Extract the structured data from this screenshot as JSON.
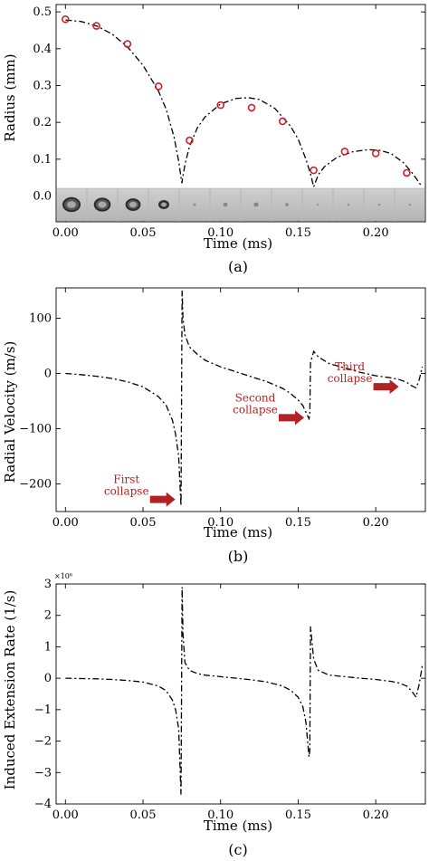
{
  "colors": {
    "marker": "#d0202a",
    "annotation": "#b22222",
    "curve": "#000000"
  },
  "chart_data": [
    {
      "type": "line",
      "panel_label": "(a)",
      "xlabel": "Time (ms)",
      "ylabel": "Radius (mm)",
      "xlim": [
        -0.006,
        0.232
      ],
      "ylim": [
        -0.07,
        0.52
      ],
      "xticks": [
        0.0,
        0.05,
        0.1,
        0.15,
        0.2
      ],
      "xtick_labels": [
        "0.00",
        "0.05",
        "0.10",
        "0.15",
        "0.20"
      ],
      "yticks": [
        0.0,
        0.1,
        0.2,
        0.3,
        0.4,
        0.5
      ],
      "ytick_labels": [
        "0.0",
        "0.1",
        "0.2",
        "0.3",
        "0.4",
        "0.5"
      ],
      "curve": {
        "x": [
          0.0,
          0.01,
          0.02,
          0.03,
          0.04,
          0.05,
          0.06,
          0.065,
          0.07,
          0.073,
          0.075,
          0.077,
          0.08,
          0.085,
          0.09,
          0.1,
          0.11,
          0.118,
          0.125,
          0.135,
          0.145,
          0.15,
          0.155,
          0.158,
          0.16,
          0.163,
          0.167,
          0.175,
          0.185,
          0.195,
          0.203,
          0.21,
          0.218,
          0.224,
          0.229
        ],
        "y": [
          0.478,
          0.474,
          0.462,
          0.44,
          0.405,
          0.355,
          0.285,
          0.235,
          0.16,
          0.095,
          0.035,
          0.085,
          0.135,
          0.185,
          0.215,
          0.25,
          0.265,
          0.267,
          0.262,
          0.238,
          0.19,
          0.155,
          0.1,
          0.06,
          0.025,
          0.058,
          0.08,
          0.105,
          0.12,
          0.126,
          0.124,
          0.115,
          0.09,
          0.06,
          0.03
        ]
      },
      "markers": {
        "x": [
          0.0,
          0.02,
          0.04,
          0.06,
          0.08,
          0.1,
          0.12,
          0.14,
          0.16,
          0.18,
          0.2,
          0.22
        ],
        "y": [
          0.48,
          0.462,
          0.413,
          0.298,
          0.151,
          0.247,
          0.24,
          0.203,
          0.07,
          0.121,
          0.116,
          0.063
        ]
      },
      "frame_strip": {
        "bubble_sizes": [
          1.0,
          0.92,
          0.82,
          0.55,
          0.18,
          0.28,
          0.3,
          0.22,
          0.1,
          0.15,
          0.15,
          0.12
        ]
      }
    },
    {
      "type": "line",
      "panel_label": "(b)",
      "xlabel": "Time (ms)",
      "ylabel": "Radial Velocity (m/s)",
      "xlim": [
        -0.006,
        0.232
      ],
      "ylim": [
        -250,
        155
      ],
      "xticks": [
        0.0,
        0.05,
        0.1,
        0.15,
        0.2
      ],
      "xtick_labels": [
        "0.00",
        "0.05",
        "0.10",
        "0.15",
        "0.20"
      ],
      "yticks": [
        -200,
        -100,
        0,
        100
      ],
      "ytick_labels": [
        "−200",
        "−100",
        "0",
        "100"
      ],
      "curve": {
        "x": [
          0.0,
          0.01,
          0.02,
          0.03,
          0.04,
          0.05,
          0.06,
          0.065,
          0.069,
          0.071,
          0.073,
          0.0745,
          0.0752,
          0.0758,
          0.077,
          0.08,
          0.085,
          0.09,
          0.1,
          0.11,
          0.12,
          0.13,
          0.14,
          0.145,
          0.15,
          0.153,
          0.155,
          0.157,
          0.1575,
          0.158,
          0.16,
          0.163,
          0.17,
          0.18,
          0.19,
          0.2,
          0.21,
          0.215,
          0.22,
          0.223,
          0.226,
          0.228,
          0.23
        ],
        "y": [
          0,
          -2,
          -5,
          -9,
          -15,
          -24,
          -42,
          -58,
          -85,
          -110,
          -150,
          -240,
          150,
          100,
          70,
          48,
          35,
          24,
          12,
          3,
          -6,
          -15,
          -27,
          -36,
          -48,
          -58,
          -70,
          -82,
          -75,
          20,
          40,
          30,
          18,
          10,
          2,
          -4,
          -8,
          -11,
          -16,
          -22,
          -26,
          -12,
          12
        ]
      },
      "annotations": [
        {
          "lines": [
            "First",
            "collapse"
          ],
          "x": 0.072,
          "y": -228
        },
        {
          "lines": [
            "Second",
            "collapse"
          ],
          "x": 0.155,
          "y": -80
        },
        {
          "lines": [
            "Third",
            "collapse"
          ],
          "x": 0.216,
          "y": -24
        }
      ]
    },
    {
      "type": "line",
      "panel_label": "(c)",
      "xlabel": "Time (ms)",
      "ylabel": "Induced Extension Rate (1/s)",
      "multiplier": "×10⁶",
      "xlim": [
        -0.006,
        0.232
      ],
      "ylim": [
        -4,
        3
      ],
      "xticks": [
        0.0,
        0.05,
        0.1,
        0.15,
        0.2
      ],
      "xtick_labels": [
        "0.00",
        "0.05",
        "0.10",
        "0.15",
        "0.20"
      ],
      "yticks": [
        -4,
        -3,
        -2,
        -1,
        0,
        1,
        2,
        3
      ],
      "ytick_labels": [
        "−4",
        "−3",
        "−2",
        "−1",
        "0",
        "1",
        "2",
        "3"
      ],
      "curve": {
        "x": [
          0.0,
          0.01,
          0.02,
          0.03,
          0.04,
          0.05,
          0.06,
          0.065,
          0.069,
          0.071,
          0.073,
          0.0745,
          0.0752,
          0.0758,
          0.077,
          0.08,
          0.085,
          0.09,
          0.1,
          0.11,
          0.12,
          0.13,
          0.14,
          0.145,
          0.15,
          0.153,
          0.155,
          0.157,
          0.1575,
          0.158,
          0.16,
          0.163,
          0.17,
          0.18,
          0.19,
          0.2,
          0.21,
          0.215,
          0.22,
          0.223,
          0.226,
          0.228,
          0.23
        ],
        "y": [
          0,
          -0.01,
          -0.02,
          -0.04,
          -0.07,
          -0.12,
          -0.25,
          -0.4,
          -0.7,
          -1.0,
          -1.6,
          -3.7,
          2.9,
          1.4,
          0.5,
          0.25,
          0.15,
          0.1,
          0.05,
          0.0,
          -0.05,
          -0.12,
          -0.25,
          -0.38,
          -0.6,
          -0.9,
          -1.4,
          -2.5,
          -2.3,
          1.65,
          0.6,
          0.25,
          0.1,
          0.05,
          0.0,
          -0.04,
          -0.1,
          -0.15,
          -0.25,
          -0.4,
          -0.6,
          -0.2,
          0.4
        ]
      }
    }
  ]
}
